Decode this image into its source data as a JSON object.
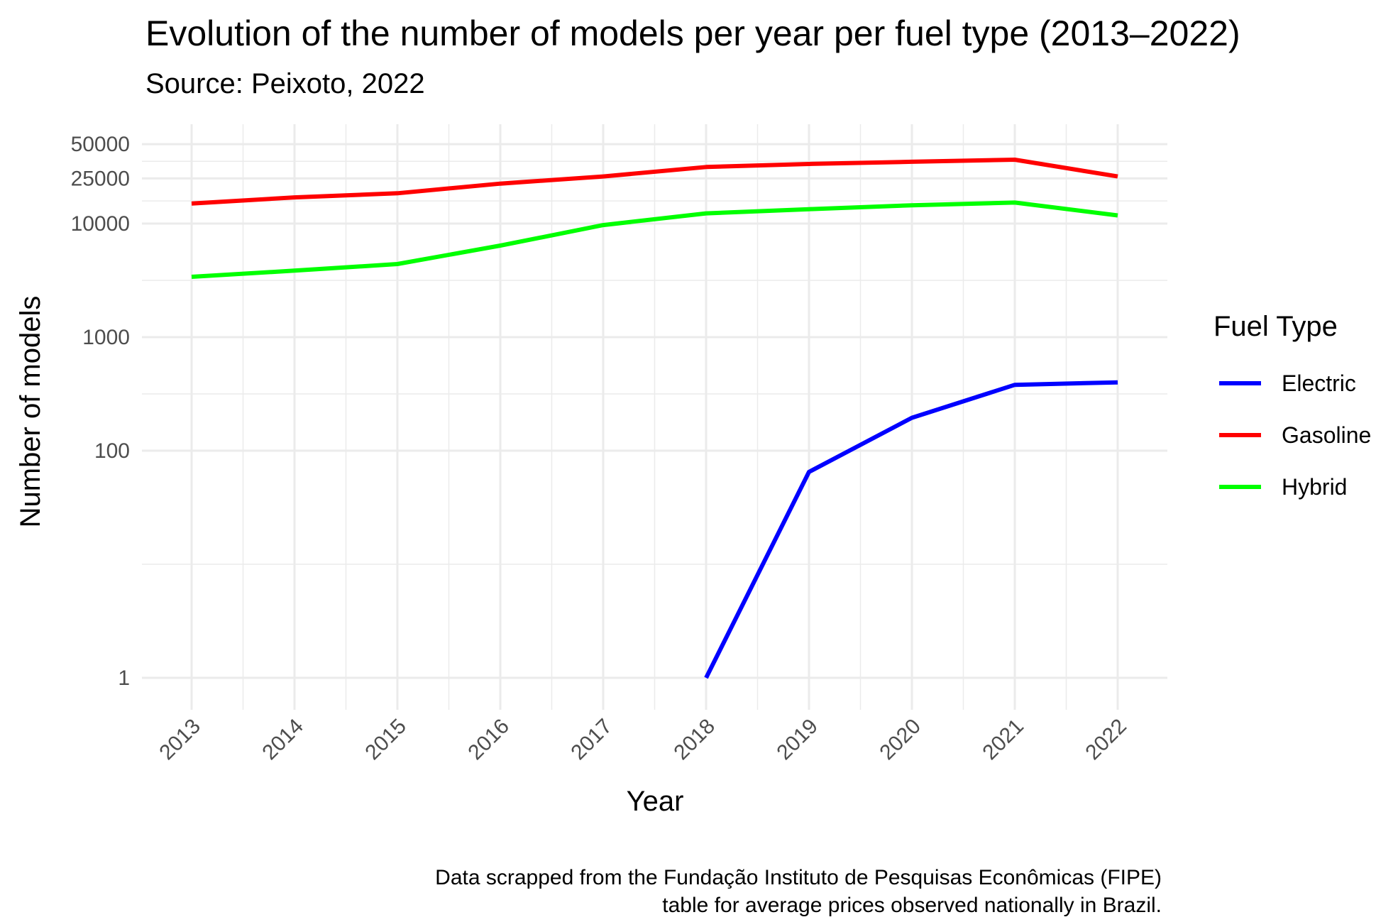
{
  "chart_data": {
    "type": "line",
    "title": "Evolution of the number of models per year per fuel type (2013–2022)",
    "subtitle": "Source: Peixoto, 2022",
    "xlabel": "Year",
    "ylabel": "Number of models",
    "y_scale": "log10",
    "ylim": [
      0.5,
      60000
    ],
    "x_ticks": [
      "2013",
      "2014",
      "2015",
      "2016",
      "2017",
      "2018",
      "2019",
      "2020",
      "2021",
      "2022"
    ],
    "y_ticks": [
      {
        "value": 1,
        "label": "1"
      },
      {
        "value": 100,
        "label": "100"
      },
      {
        "value": 1000,
        "label": "1000"
      },
      {
        "value": 10000,
        "label": "10000"
      },
      {
        "value": 25000,
        "label": "25000"
      },
      {
        "value": 50000,
        "label": "50000"
      }
    ],
    "grid": true,
    "legend": {
      "title": "Fuel Type",
      "position": "right"
    },
    "series": [
      {
        "name": "Electric",
        "color": "#0000ff",
        "x": [
          2018,
          2019,
          2020,
          2021,
          2022
        ],
        "values": [
          1,
          65,
          195,
          380,
          400
        ]
      },
      {
        "name": "Gasoline",
        "color": "#ff0000",
        "x": [
          2013,
          2014,
          2015,
          2016,
          2017,
          2018,
          2019,
          2020,
          2021,
          2022
        ],
        "values": [
          15000,
          17000,
          18500,
          22500,
          26000,
          31500,
          33500,
          35000,
          36500,
          26000
        ]
      },
      {
        "name": "Hybrid",
        "color": "#00ff00",
        "x": [
          2013,
          2014,
          2015,
          2016,
          2017,
          2018,
          2019,
          2020,
          2021,
          2022
        ],
        "values": [
          3400,
          3850,
          4400,
          6400,
          9700,
          12300,
          13400,
          14500,
          15300,
          11800
        ]
      }
    ],
    "caption": [
      "Data scrapped from the Fundação Instituto de Pesquisas Econômicas (FIPE)",
      "table for average prices observed nationally in Brazil."
    ]
  }
}
